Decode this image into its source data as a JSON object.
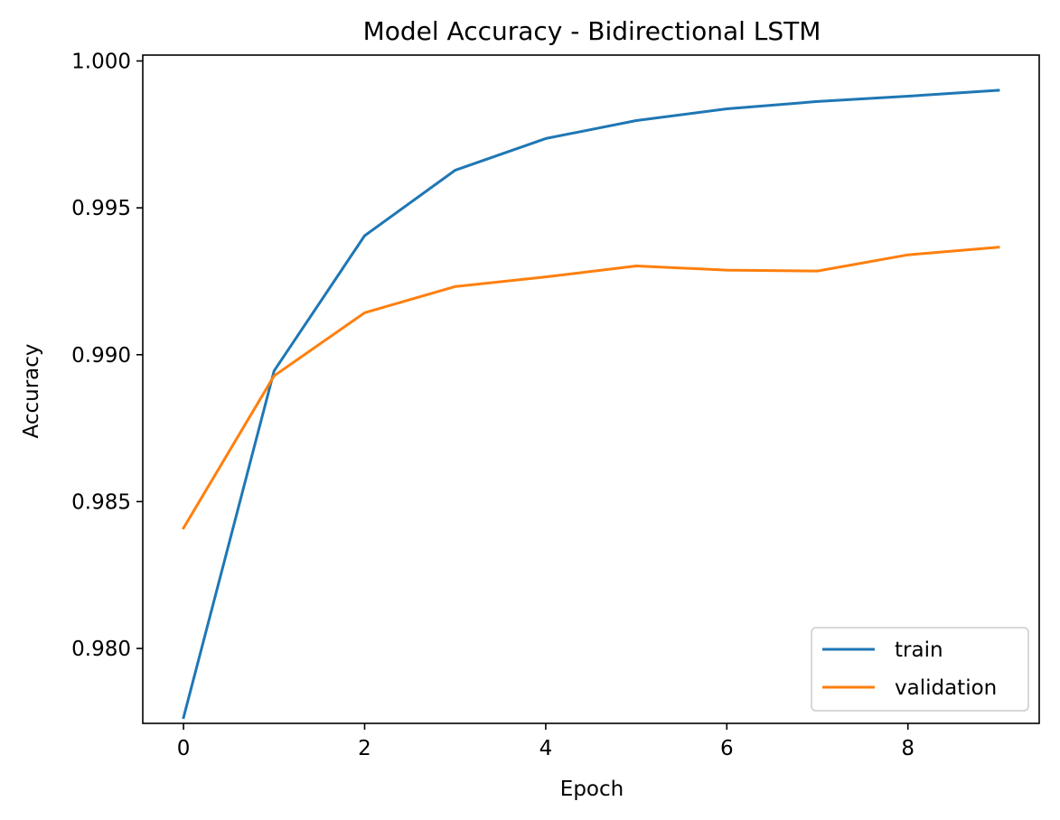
{
  "chart_data": {
    "type": "line",
    "title": "Model Accuracy - Bidirectional LSTM",
    "xlabel": "Epoch",
    "ylabel": "Accuracy",
    "x": [
      0,
      1,
      2,
      3,
      4,
      5,
      6,
      7,
      8,
      9
    ],
    "xlim": [
      -0.45,
      9.45
    ],
    "ylim": [
      0.97745,
      1.0002
    ],
    "x_ticks": [
      0,
      2,
      4,
      6,
      8
    ],
    "x_tick_labels": [
      "0",
      "2",
      "4",
      "6",
      "8"
    ],
    "y_ticks": [
      0.98,
      0.985,
      0.99,
      0.995,
      1.0
    ],
    "y_tick_labels": [
      "0.980",
      "0.985",
      "0.990",
      "0.995",
      "1.000"
    ],
    "grid": false,
    "legend_position": "lower-right",
    "series": [
      {
        "name": "train",
        "color": "#1f77b4",
        "values": [
          0.97765,
          0.98945,
          0.99405,
          0.99628,
          0.99736,
          0.99797,
          0.99837,
          0.99862,
          0.9988,
          0.999
        ]
      },
      {
        "name": "validation",
        "color": "#ff7f0e",
        "values": [
          0.9841,
          0.98928,
          0.99143,
          0.99232,
          0.99265,
          0.99302,
          0.99288,
          0.99285,
          0.9934,
          0.99366
        ]
      }
    ]
  }
}
